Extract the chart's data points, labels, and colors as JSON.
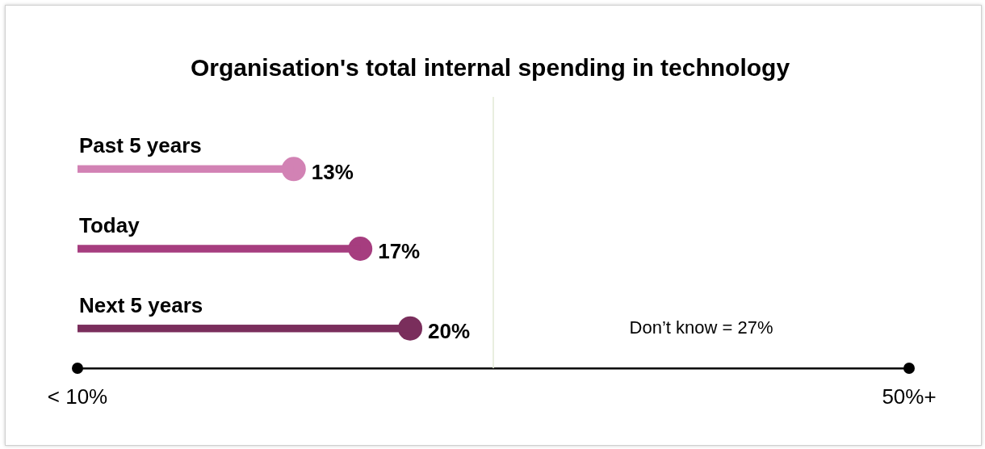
{
  "chart_data": {
    "type": "lollipop",
    "orientation": "horizontal",
    "title": "Organisation's total internal spending in technology",
    "categories": [
      "Past 5 years",
      "Today",
      "Next 5 years"
    ],
    "values": [
      13,
      17,
      20
    ],
    "colors": [
      "#d282b4",
      "#a63d7f",
      "#7a2e5c"
    ],
    "value_labels": [
      "13%",
      "17%",
      "20%"
    ],
    "xlim": [
      0,
      50
    ],
    "ref_lines": [
      {
        "axis": "x",
        "value": 25,
        "color": "#e2e8d4"
      }
    ],
    "annotations": [
      "< 10%",
      "50%+",
      "Don’t know = 27%"
    ],
    "grid": false,
    "legend": false
  }
}
